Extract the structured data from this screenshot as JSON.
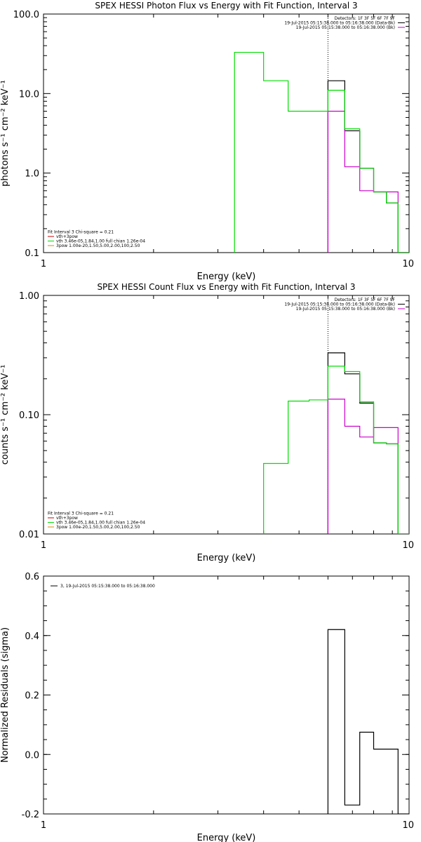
{
  "chart_data": [
    {
      "type": "line",
      "title": "SPEX HESSI Photon Flux vs Energy with Fit Function, Interval 3",
      "xlabel": "Energy (keV)",
      "ylabel": "photons s⁻¹ cm⁻² keV⁻¹",
      "xscale": "log",
      "yscale": "log",
      "xlim": [
        1,
        10
      ],
      "ylim": [
        0.1,
        100
      ],
      "xticks": [
        {
          "v": 1,
          "label": "1"
        },
        {
          "v": 10,
          "label": "10"
        }
      ],
      "yticks": [
        {
          "v": 0.1,
          "label": "0.1"
        },
        {
          "v": 1,
          "label": "1.0"
        },
        {
          "v": 10,
          "label": "10.0"
        },
        {
          "v": 100,
          "label": "100.0"
        }
      ],
      "vline": 6.0,
      "legend_top": [
        {
          "text": "Detectors: 1F 3F 5F 6F 7F 9F",
          "color": ""
        },
        {
          "text": "19-Jul-2015 05:15:38.000 to 05:16:38.000 (Data-Bk)",
          "color": "#000000"
        },
        {
          "text": "19-Jul-2015 05:15:38.000 to 05:16:38.000 (Bk)",
          "color": "#cc00cc"
        }
      ],
      "legend_bottom": [
        {
          "text": "Fit Interval 3   Chi-square = 0.21",
          "color": ""
        },
        {
          "text": "vth+3pow",
          "color": "#cc0000"
        },
        {
          "text": "vth 3.46e-05,1.84,1.00  full chian 1.26e-04",
          "color": "#00dd00"
        },
        {
          "text": "3pow 1.00e-20,1.50,5.00,2.00,100,2.50",
          "color": "#dd8800"
        }
      ],
      "series": [
        {
          "color": "#000000",
          "edges": [
            6.0,
            6.67,
            7.33,
            8.0,
            8.67,
            9.33,
            10.0
          ],
          "values": [
            14.5,
            3.4,
            1.15,
            0.58,
            0.42,
            0.1
          ]
        },
        {
          "color": "#cc00cc",
          "edges": [
            6.0,
            6.67,
            7.33,
            8.0,
            8.67,
            9.33,
            10.0
          ],
          "values": [
            6.0,
            1.2,
            0.6,
            0.58,
            0.58,
            0.1
          ]
        },
        {
          "color": "#00dd00",
          "edges": [
            3.33,
            4.0,
            4.67,
            5.33,
            6.0,
            6.67,
            7.33,
            8.0,
            8.67,
            9.33,
            10.0
          ],
          "values": [
            33,
            14.5,
            6.0,
            6.0,
            11,
            3.6,
            1.15,
            0.58,
            0.42,
            0.1
          ]
        }
      ]
    },
    {
      "type": "line",
      "title": "SPEX HESSI Count Flux vs Energy with Fit Function, Interval 3",
      "xlabel": "Energy (keV)",
      "ylabel": "counts s⁻¹ cm⁻² keV⁻¹",
      "xscale": "log",
      "yscale": "log",
      "xlim": [
        1,
        10
      ],
      "ylim": [
        0.01,
        1
      ],
      "xticks": [
        {
          "v": 1,
          "label": "1"
        },
        {
          "v": 10,
          "label": "10"
        }
      ],
      "yticks": [
        {
          "v": 0.01,
          "label": "0.01"
        },
        {
          "v": 0.1,
          "label": "0.10"
        },
        {
          "v": 1,
          "label": "1.00"
        }
      ],
      "vline": 6.0,
      "legend_top": [
        {
          "text": "Detectors: 1F 3F 5F 6F 7F 9F",
          "color": ""
        },
        {
          "text": "19-Jul-2015 05:15:38.000 to 05:16:38.000 (Data-Bk)",
          "color": "#000000"
        },
        {
          "text": "19-Jul-2015 05:15:38.000 to 05:16:38.000 (Bk)",
          "color": "#cc00cc"
        }
      ],
      "legend_bottom": [
        {
          "text": "Fit Interval 3   Chi-square = 0.21",
          "color": ""
        },
        {
          "text": "vth+3pow",
          "color": "#cc0000"
        },
        {
          "text": "vth 3.46e-05,1.84,1.00  full chian 1.26e-04",
          "color": "#00dd00"
        },
        {
          "text": "3pow 1.00e-20,1.50,5.00,2.00,100,2.50",
          "color": "#dd8800"
        }
      ],
      "series": [
        {
          "color": "#000000",
          "edges": [
            6.0,
            6.67,
            7.33,
            8.0,
            8.67,
            9.33,
            10.0
          ],
          "values": [
            0.33,
            0.22,
            0.125,
            0.058,
            0.057,
            0.01
          ]
        },
        {
          "color": "#cc00cc",
          "edges": [
            6.0,
            6.67,
            7.33,
            8.0,
            8.67,
            9.33,
            10.0
          ],
          "values": [
            0.135,
            0.08,
            0.065,
            0.078,
            0.078,
            0.01
          ]
        },
        {
          "color": "#00dd00",
          "edges": [
            4.0,
            4.67,
            5.33,
            6.0,
            6.67,
            7.33,
            8.0,
            8.67,
            9.33,
            10.0
          ],
          "values": [
            0.039,
            0.13,
            0.133,
            0.255,
            0.23,
            0.128,
            0.058,
            0.057,
            0.01
          ]
        }
      ]
    },
    {
      "type": "line",
      "title": "",
      "xlabel": "Energy (keV)",
      "ylabel": "Normalized Residuals (sigma)",
      "xscale": "log",
      "yscale": "linear",
      "xlim": [
        1,
        10
      ],
      "ylim": [
        -0.2,
        0.6
      ],
      "xticks": [
        {
          "v": 1,
          "label": "1"
        },
        {
          "v": 10,
          "label": "10"
        }
      ],
      "yticks": [
        {
          "v": -0.2,
          "label": "-0.2"
        },
        {
          "v": 0.0,
          "label": "0.0"
        },
        {
          "v": 0.2,
          "label": "0.2"
        },
        {
          "v": 0.4,
          "label": "0.4"
        },
        {
          "v": 0.6,
          "label": "0.6"
        }
      ],
      "legend_top_left": [
        {
          "text": "3, 19-Jul-2015 05:15:38.000 to 05:16:38.000",
          "color": "#000000"
        }
      ],
      "series": [
        {
          "color": "#000000",
          "edges": [
            6.0,
            6.67,
            7.33,
            8.0,
            8.67,
            9.33,
            10.0
          ],
          "values": [
            0.42,
            -0.17,
            0.075,
            0.018,
            0.018,
            -0.2
          ]
        }
      ]
    }
  ]
}
